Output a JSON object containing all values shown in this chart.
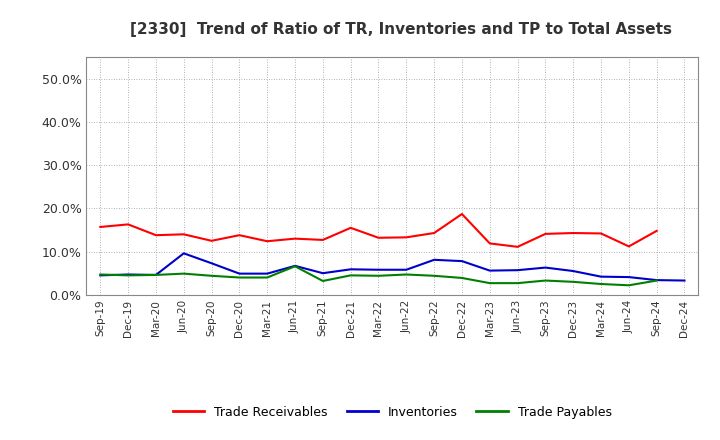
{
  "title": "[2330]  Trend of Ratio of TR, Inventories and TP to Total Assets",
  "x_labels": [
    "Sep-19",
    "Dec-19",
    "Mar-20",
    "Jun-20",
    "Sep-20",
    "Dec-20",
    "Mar-21",
    "Jun-21",
    "Sep-21",
    "Dec-21",
    "Mar-22",
    "Jun-22",
    "Sep-22",
    "Dec-22",
    "Mar-23",
    "Jun-23",
    "Sep-23",
    "Dec-23",
    "Mar-24",
    "Jun-24",
    "Sep-24",
    "Dec-24"
  ],
  "trade_receivables": [
    0.157,
    0.163,
    0.138,
    0.14,
    0.125,
    0.138,
    0.124,
    0.13,
    0.127,
    0.155,
    0.132,
    0.133,
    0.143,
    0.187,
    0.119,
    0.111,
    0.141,
    0.143,
    0.142,
    0.112,
    0.148,
    null
  ],
  "inventories": [
    0.045,
    0.047,
    0.046,
    0.096,
    0.073,
    0.049,
    0.049,
    0.067,
    0.05,
    0.059,
    0.058,
    0.058,
    0.081,
    0.078,
    0.056,
    0.057,
    0.063,
    0.055,
    0.042,
    0.041,
    0.034,
    0.033
  ],
  "trade_payables": [
    0.047,
    0.045,
    0.046,
    0.049,
    0.044,
    0.04,
    0.04,
    0.066,
    0.032,
    0.045,
    0.044,
    0.047,
    0.044,
    0.039,
    0.027,
    0.027,
    0.033,
    0.03,
    0.025,
    0.022,
    0.033,
    null
  ],
  "tr_color": "#ff0000",
  "inv_color": "#0000cc",
  "tp_color": "#008000",
  "ylim": [
    0.0,
    0.55
  ],
  "yticks": [
    0.0,
    0.1,
    0.2,
    0.3,
    0.4,
    0.5
  ],
  "bg_color": "#ffffff",
  "grid_color": "#999999"
}
